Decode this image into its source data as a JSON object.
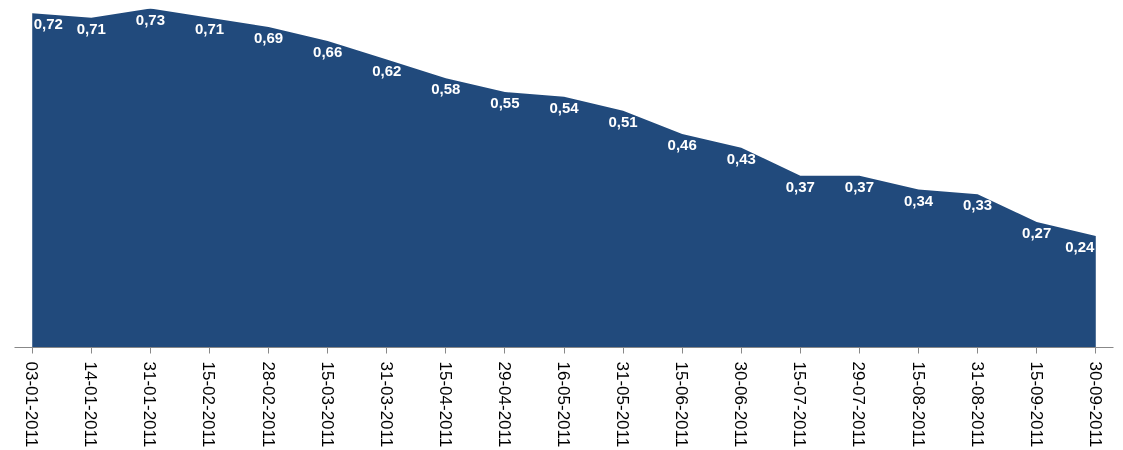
{
  "chart_data": {
    "type": "area",
    "categories": [
      "03-01-2011",
      "14-01-2011",
      "31-01-2011",
      "15-02-2011",
      "28-02-2011",
      "15-03-2011",
      "31-03-2011",
      "15-04-2011",
      "29-04-2011",
      "16-05-2011",
      "31-05-2011",
      "15-06-2011",
      "30-06-2011",
      "15-07-2011",
      "29-07-2011",
      "15-08-2011",
      "31-08-2011",
      "15-09-2011",
      "30-09-2011"
    ],
    "series": [
      {
        "color": "#214a7c",
        "values": [
          0.72,
          0.71,
          0.73,
          0.71,
          0.69,
          0.66,
          0.62,
          0.58,
          0.55,
          0.54,
          0.51,
          0.46,
          0.43,
          0.37,
          0.37,
          0.34,
          0.33,
          0.27,
          0.24
        ],
        "value_labels": [
          "0,72",
          "0,71",
          "0,73",
          "0,71",
          "0,69",
          "0,66",
          "0,62",
          "0,58",
          "0,55",
          "0,54",
          "0,51",
          "0,46",
          "0,43",
          "0,37",
          "0,37",
          "0,34",
          "0,33",
          "0,27",
          "0,24"
        ]
      }
    ],
    "grid": false
  }
}
